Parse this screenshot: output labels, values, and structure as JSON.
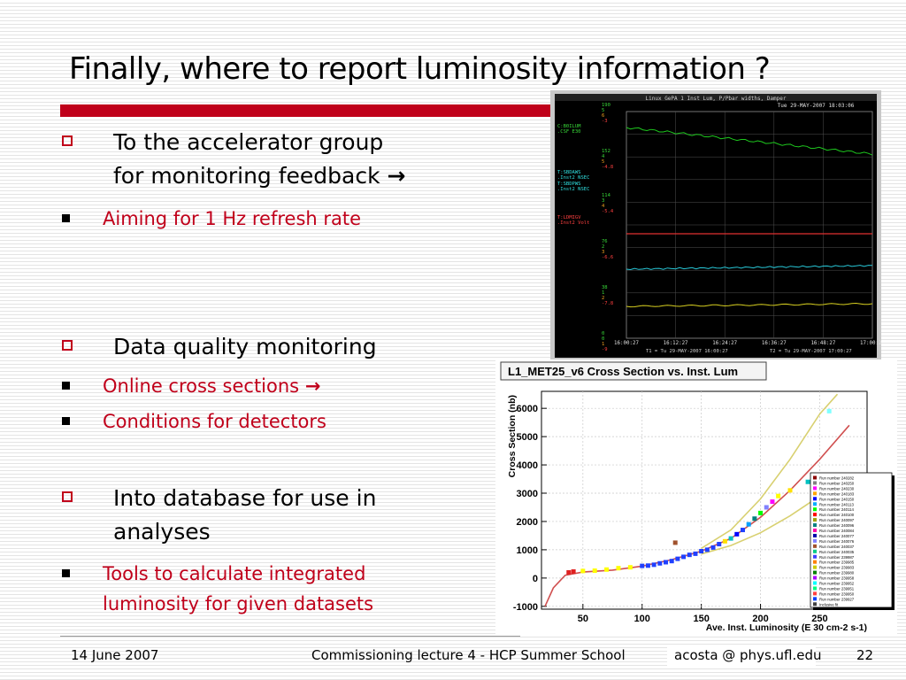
{
  "slide": {
    "title": "Finally, where to report luminosity information ?",
    "bullets": [
      {
        "text": "To the accelerator group",
        "text2": "for monitoring feedback",
        "arrow": "→"
      },
      {
        "text": "Data quality monitoring"
      },
      {
        "text": "Into database for use in",
        "text2": "analyses"
      }
    ],
    "subbullets": [
      {
        "text": "Aiming for 1 Hz refresh rate"
      },
      {
        "text": "Online cross sections",
        "arrow": "→"
      },
      {
        "text": "Conditions for detectors"
      },
      {
        "text": "Tools to calculate integrated",
        "text2": "luminosity for given datasets"
      }
    ],
    "footer": {
      "date": "14 June 2007",
      "center": "Commissioning lecture 4  - HCP Summer School",
      "email": "acosta @ phys.ufl.edu",
      "page": "22"
    }
  },
  "scope": {
    "header": "Linux GePA 1  Inst Lum, P/Pbar widths, Damper",
    "timestamp": "Tue 29-MAY-2007 18:03:06",
    "left_labels": [
      "190",
      "5",
      "6",
      "-3",
      "C:B0ILUM",
      ".CSF    E30",
      "152",
      "4",
      "5",
      "-4.8",
      "T:SBDAWS",
      ".Inst2  NSEC",
      "T:SBDPWS",
      ".Inst2  NSEC",
      "114",
      "3",
      "4",
      "-5.4",
      "T:LDMIGV",
      ".Inst2  Volt",
      "76",
      "2",
      "3",
      "-6.6",
      "38",
      "1",
      "2",
      "-7.8",
      "0",
      "0",
      "1",
      "-9"
    ],
    "x_ticks": [
      "16:00:27",
      "16:12:27",
      "16:24:27",
      "16:36:27",
      "16:48:27",
      "17:00:27"
    ],
    "footer_left": "T1 = Tu 29-MAY-2007 16:00:27",
    "footer_right": "T2 = Tu 29-MAY-2007 17:00:27",
    "colors": {
      "green": "#1ec81e",
      "red": "#e03030",
      "cyan": "#28c8d8",
      "yellow": "#d8d020",
      "label_green": "#38d838",
      "label_cyan": "#30e0e0",
      "label_red": "#ff4040",
      "label_orange": "#f0a020"
    }
  },
  "chart_data": {
    "type": "scatter",
    "title": "L1_MET25_v6 Cross Section vs. Inst. Lum",
    "xlabel": "Ave. Inst. Luminosity (E 30 cm-2 s-1)",
    "ylabel": "Cross Section (nb)",
    "xlim": [
      15,
      290
    ],
    "ylim": [
      -1100,
      6600
    ],
    "x_ticks": [
      50,
      100,
      150,
      200,
      250
    ],
    "y_ticks": [
      -1000,
      0,
      1000,
      2000,
      3000,
      4000,
      5000,
      6000
    ],
    "grid": true,
    "legend_placement": "right",
    "legend": [
      "Run number 240282",
      "Run number 240250",
      "Run number 240230",
      "Run number 240183",
      "Run number 240150",
      "Run number 240113",
      "Run number 240114",
      "Run number 240100",
      "Run number 240097",
      "Run number 240096",
      "Run number 240084",
      "Run number 240077",
      "Run number 240076",
      "Run number 240037",
      "Run number 240035",
      "Run number 239987",
      "Run number 239985",
      "Run number 239983",
      "Run number 239980",
      "Run number 239958",
      "Run number 239952",
      "Run number 239951",
      "Run number 239950",
      "Run number 239927",
      "Inclusive fit"
    ],
    "legend_colors": [
      "#8b0000",
      "#808080",
      "#ff00ff",
      "#ffa500",
      "#0000ff",
      "#00aaff",
      "#00ff00",
      "#ff0000",
      "#a0a000",
      "#008080",
      "#ff00aa",
      "#0000aa",
      "#8080ff",
      "#a0522d",
      "#00cc88",
      "#4040ff",
      "#ff8000",
      "#cccc00",
      "#008000",
      "#aa00ff",
      "#00ffff",
      "#00ff80",
      "#ff4040",
      "#0040ff",
      "#404040"
    ],
    "series": [
      {
        "name": "data",
        "points": [
          [
            38,
            200
          ],
          [
            42,
            230
          ],
          [
            50,
            250
          ],
          [
            60,
            260
          ],
          [
            70,
            300
          ],
          [
            80,
            350
          ],
          [
            90,
            380
          ],
          [
            100,
            430
          ],
          [
            105,
            440
          ],
          [
            110,
            470
          ],
          [
            115,
            520
          ],
          [
            120,
            560
          ],
          [
            125,
            600
          ],
          [
            130,
            680
          ],
          [
            135,
            750
          ],
          [
            140,
            820
          ],
          [
            145,
            860
          ],
          [
            150,
            950
          ],
          [
            155,
            1000
          ],
          [
            160,
            1080
          ],
          [
            165,
            1200
          ],
          [
            170,
            1300
          ],
          [
            175,
            1400
          ],
          [
            180,
            1550
          ],
          [
            185,
            1700
          ],
          [
            190,
            1900
          ],
          [
            195,
            2100
          ],
          [
            200,
            2300
          ],
          [
            205,
            2500
          ],
          [
            210,
            2700
          ],
          [
            215,
            2900
          ],
          [
            225,
            3100
          ],
          [
            240,
            3400
          ],
          [
            128,
            1250
          ],
          [
            258,
            5900
          ]
        ]
      },
      {
        "name": "fit",
        "points": [
          [
            18,
            -1000
          ],
          [
            25,
            -350
          ],
          [
            35,
            100
          ],
          [
            50,
            210
          ],
          [
            75,
            280
          ],
          [
            100,
            420
          ],
          [
            125,
            650
          ],
          [
            150,
            950
          ],
          [
            175,
            1400
          ],
          [
            200,
            2150
          ],
          [
            225,
            3100
          ],
          [
            250,
            4200
          ],
          [
            275,
            5400
          ]
        ]
      },
      {
        "name": "upper",
        "points": [
          [
            150,
            1050
          ],
          [
            175,
            1700
          ],
          [
            200,
            2800
          ],
          [
            225,
            4200
          ],
          [
            250,
            5800
          ],
          [
            265,
            6500
          ]
        ]
      },
      {
        "name": "lower",
        "points": [
          [
            150,
            850
          ],
          [
            175,
            1150
          ],
          [
            200,
            1600
          ],
          [
            225,
            2200
          ],
          [
            250,
            2900
          ],
          [
            275,
            3700
          ]
        ]
      }
    ]
  }
}
